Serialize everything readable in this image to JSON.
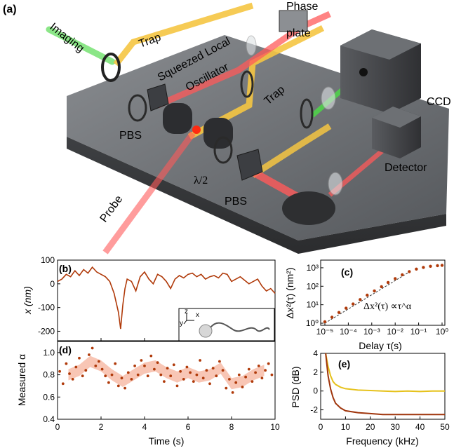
{
  "panel_a": {
    "tag": "(a)",
    "labels": {
      "imaging": "Imaging",
      "trap_left": "Trap",
      "squeezed1": "Squeezed Local",
      "squeezed2": "Oscillator",
      "phase1": "Phase",
      "phase2": "plate",
      "trap_right": "Trap",
      "ccd": "CCD",
      "pbs_left": "PBS",
      "pbs_right": "PBS",
      "halfwave": "λ/2",
      "detector": "Detector",
      "probe": "Probe"
    },
    "colors": {
      "trap": "#f5c542",
      "imaging": "#7ee37a",
      "probe": "#ff5a5a",
      "table": "#6b6e72"
    }
  },
  "chart_data": [
    {
      "id": "b",
      "tag": "(b)",
      "type": "line",
      "xlabel": "",
      "ylabel": "x (nm)",
      "xlim": [
        0,
        10
      ],
      "ylim": [
        -240,
        100
      ],
      "xticks": [
        0,
        2,
        4,
        6,
        8,
        10
      ],
      "yticks": [
        -200,
        -100,
        0,
        100
      ],
      "ytick_labels": [
        "-200",
        "-100",
        "0",
        "100"
      ],
      "series": [
        {
          "color": "#b03a0a",
          "x": [
            0,
            0.2,
            0.4,
            0.6,
            0.8,
            1.0,
            1.2,
            1.4,
            1.6,
            1.8,
            2.0,
            2.2,
            2.4,
            2.6,
            2.8,
            2.9,
            3.0,
            3.1,
            3.2,
            3.4,
            3.6,
            3.8,
            4.0,
            4.2,
            4.4,
            4.6,
            4.8,
            5.0,
            5.2,
            5.4,
            5.6,
            5.8,
            6.0,
            6.2,
            6.4,
            6.6,
            6.8,
            7.0,
            7.2,
            7.4,
            7.6,
            7.8,
            8.0,
            8.2,
            8.4,
            8.6,
            8.8,
            9.0,
            9.2,
            9.4,
            9.6,
            9.8,
            10.0
          ],
          "y": [
            10,
            20,
            40,
            30,
            55,
            35,
            60,
            45,
            70,
            50,
            40,
            30,
            10,
            -40,
            -120,
            -190,
            -90,
            -20,
            20,
            10,
            -30,
            30,
            50,
            20,
            0,
            40,
            30,
            10,
            -20,
            20,
            35,
            25,
            40,
            45,
            30,
            40,
            20,
            30,
            35,
            25,
            45,
            40,
            10,
            20,
            30,
            15,
            0,
            10,
            20,
            -10,
            -30,
            -20,
            -40
          ]
        }
      ],
      "inset": {
        "axis_z": "z",
        "axis_y": "y",
        "axis_x": "x"
      }
    },
    {
      "id": "c",
      "tag": "(c)",
      "type": "scatter",
      "xlabel": "Delay τ(s)",
      "ylabel": "Δx²(τ) (nm²)",
      "annotation": "Δx²(τ) ∝τ^α",
      "xscale": "log",
      "yscale": "log",
      "xlim": [
        1e-05,
        1
      ],
      "ylim": [
        1,
        2000
      ],
      "xtick_labels": [
        "10⁻⁵",
        "10⁻⁴",
        "10⁻³",
        "10⁻²",
        "10⁻¹",
        "10⁰"
      ],
      "ytick_labels": [
        "10⁰",
        "10¹",
        "10²",
        "10³"
      ],
      "series": [
        {
          "color": "#b03a0a",
          "x": [
            1e-05,
            2e-05,
            4e-05,
            8e-05,
            0.00016,
            0.00032,
            0.00064,
            0.0013,
            0.0026,
            0.005,
            0.01,
            0.02,
            0.04,
            0.08,
            0.16,
            0.32,
            0.64,
            1.0
          ],
          "y": [
            1.2,
            2.1,
            3.8,
            6.5,
            11,
            19,
            33,
            56,
            95,
            160,
            260,
            420,
            620,
            850,
            1050,
            1200,
            1300,
            1350
          ]
        }
      ],
      "fit_color": "#333333"
    },
    {
      "id": "d",
      "tag": "(d)",
      "type": "scatter",
      "xlabel": "Time (s)",
      "ylabel": "Measured α",
      "xlim": [
        0,
        10
      ],
      "ylim": [
        0.4,
        1.1
      ],
      "xticks": [
        0,
        2,
        4,
        6,
        8,
        10
      ],
      "yticks": [
        0.4,
        0.6,
        0.8,
        1.0
      ],
      "ytick_labels": [
        "0.4",
        "0.6",
        "0.8",
        "1.0"
      ],
      "band": {
        "color": "#f6b8a3",
        "x": [
          0.5,
          1.0,
          1.5,
          2.0,
          2.5,
          3.0,
          3.5,
          4.0,
          4.5,
          5.0,
          5.5,
          6.0,
          6.5,
          7.0,
          7.5,
          8.0,
          8.5,
          9.0,
          9.5
        ],
        "y": [
          0.8,
          0.84,
          0.92,
          0.88,
          0.8,
          0.74,
          0.8,
          0.86,
          0.88,
          0.82,
          0.78,
          0.82,
          0.78,
          0.8,
          0.86,
          0.72,
          0.74,
          0.8,
          0.84
        ]
      },
      "series": [
        {
          "color": "#b03a0a",
          "x": [
            0.1,
            0.25,
            0.4,
            0.55,
            0.7,
            0.85,
            1.0,
            1.15,
            1.3,
            1.45,
            1.6,
            1.75,
            1.9,
            2.05,
            2.2,
            2.35,
            2.5,
            2.65,
            2.8,
            2.95,
            3.1,
            3.25,
            3.4,
            3.55,
            3.7,
            3.85,
            4.0,
            4.15,
            4.3,
            4.45,
            4.6,
            4.75,
            4.9,
            5.05,
            5.2,
            5.35,
            5.5,
            5.65,
            5.8,
            5.95,
            6.1,
            6.25,
            6.4,
            6.55,
            6.7,
            6.85,
            7.0,
            7.15,
            7.3,
            7.45,
            7.6,
            7.75,
            7.9,
            8.05,
            8.2,
            8.35,
            8.5,
            8.65,
            8.8,
            8.95,
            9.1,
            9.25,
            9.4,
            9.55,
            9.7,
            9.85
          ],
          "y": [
            0.83,
            0.72,
            0.9,
            0.81,
            0.76,
            0.87,
            0.95,
            0.79,
            0.84,
            0.98,
            1.04,
            0.88,
            0.92,
            0.85,
            0.79,
            0.73,
            0.8,
            0.9,
            0.7,
            0.77,
            0.68,
            0.82,
            0.76,
            0.88,
            0.8,
            0.93,
            0.88,
            0.79,
            0.97,
            0.85,
            0.91,
            0.8,
            0.74,
            0.86,
            0.79,
            0.89,
            0.7,
            0.83,
            0.76,
            0.87,
            0.82,
            0.74,
            0.8,
            0.93,
            0.77,
            0.84,
            0.72,
            0.86,
            0.79,
            0.92,
            0.84,
            0.68,
            0.76,
            0.64,
            0.73,
            0.8,
            0.69,
            0.78,
            0.85,
            0.74,
            0.82,
            0.88,
            0.77,
            0.84,
            0.9,
            0.8
          ]
        }
      ]
    },
    {
      "id": "e",
      "tag": "(e)",
      "type": "line",
      "xlabel": "Frequency (kHz)",
      "ylabel": "PSD (dB)",
      "xlim": [
        0,
        50
      ],
      "ylim": [
        -3,
        4
      ],
      "xticks": [
        0,
        10,
        20,
        30,
        40,
        50
      ],
      "yticks": [
        -2,
        0,
        2,
        4
      ],
      "ytick_labels": [
        "-2",
        "0",
        "2",
        "4"
      ],
      "series": [
        {
          "color": "#e6c21c",
          "x": [
            2,
            3,
            4,
            5,
            6,
            8,
            10,
            15,
            20,
            25,
            30,
            35,
            40,
            45,
            50
          ],
          "y": [
            4.0,
            2.6,
            1.6,
            1.0,
            0.7,
            0.4,
            0.25,
            0.1,
            0.05,
            0.0,
            -0.05,
            0.0,
            -0.05,
            0.0,
            0.0
          ]
        },
        {
          "color": "#a0360d",
          "x": [
            2,
            3,
            4,
            5,
            6,
            8,
            10,
            15,
            20,
            25,
            30,
            35,
            40,
            45,
            50
          ],
          "y": [
            4.0,
            1.6,
            0.2,
            -0.7,
            -1.3,
            -1.8,
            -2.1,
            -2.3,
            -2.4,
            -2.5,
            -2.5,
            -2.5,
            -2.5,
            -2.5,
            -2.5
          ]
        }
      ]
    }
  ]
}
